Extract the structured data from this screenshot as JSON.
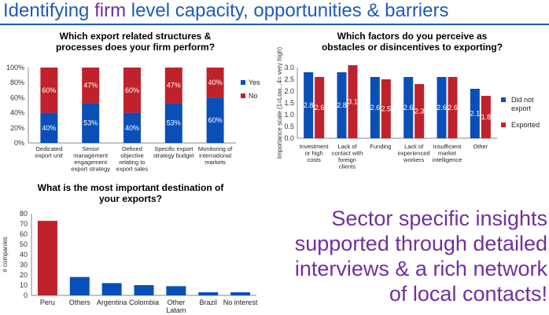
{
  "slide": {
    "title_part1": "Identifying ",
    "title_accent": "firm",
    "title_part2": " level capacity, opportunities & barriers",
    "insight_lines": [
      "Sector specific insights",
      "supported through detailed",
      "interviews & a rich network",
      "of local contacts!"
    ]
  },
  "colors": {
    "blue": "#0a4fb8",
    "red": "#c0222b",
    "title_blue": "#1f5bb5",
    "purple": "#7030a0"
  },
  "chart_data": [
    {
      "type": "bar",
      "stacked": true,
      "title_lines": [
        "Which export related structures &",
        "processes does your firm perform?"
      ],
      "categories": [
        [
          "Dedicated",
          "export unit"
        ],
        [
          "Senior",
          "management",
          "engagement",
          "export strategy"
        ],
        [
          "Defined",
          "objective",
          "relating to",
          "export sales"
        ],
        [
          "Specific export",
          "strategy budget"
        ],
        [
          "Monitoring of",
          "international",
          "markets"
        ]
      ],
      "series": [
        {
          "name": "Yes",
          "values": [
            40,
            53,
            40,
            53,
            60
          ]
        },
        {
          "name": "No",
          "values": [
            60,
            47,
            60,
            47,
            40
          ]
        }
      ],
      "ylim": [
        0,
        100
      ],
      "yticks": [
        "0%",
        "20%",
        "40%",
        "60%",
        "80%",
        "100%"
      ],
      "value_suffix": "%",
      "legend": "right"
    },
    {
      "type": "bar",
      "title_lines": [
        "Which factors do you perceive as",
        "obstacles or disincentives to exporting?"
      ],
      "ylabel": "Importance scale (1=Low...4= very high)",
      "categories": [
        [
          "Investment",
          "or high",
          "costs"
        ],
        [
          "Lack of",
          "contact with",
          "foreign",
          "clients"
        ],
        [
          "Funding"
        ],
        [
          "Lack of",
          "experienced",
          "workers"
        ],
        [
          "Insufficient",
          "market",
          "intelligence"
        ],
        [
          "Other"
        ]
      ],
      "series": [
        {
          "name": "Did not export",
          "legend_lines": [
            "Did not",
            "export"
          ],
          "values": [
            2.8,
            2.8,
            2.6,
            2.6,
            2.6,
            2.1
          ]
        },
        {
          "name": "Exported",
          "legend_lines": [
            "Exported"
          ],
          "values": [
            2.6,
            3.1,
            2.5,
            2.3,
            2.6,
            1.8
          ]
        }
      ],
      "ylim": [
        0,
        3
      ],
      "yticks": [
        "0.0",
        "0.5",
        "1.0",
        "1.5",
        "2.0",
        "2.5",
        "3.0"
      ],
      "legend": "right"
    },
    {
      "type": "bar",
      "title_lines": [
        "What is the most important destination of",
        "your exports?"
      ],
      "ylabel": "# companies",
      "categories": [
        [
          "Peru"
        ],
        [
          "Others"
        ],
        [
          "Argentina"
        ],
        [
          "Colombia"
        ],
        [
          "Other",
          "Latam"
        ],
        [
          "Brazil"
        ],
        [
          "No interest"
        ]
      ],
      "values": [
        73,
        18,
        12,
        10,
        9,
        3,
        3
      ],
      "highlight_index": 0,
      "ylim": [
        0,
        80
      ],
      "yticks": [
        "0",
        "10",
        "20",
        "30",
        "40",
        "50",
        "60",
        "70",
        "80"
      ]
    }
  ]
}
